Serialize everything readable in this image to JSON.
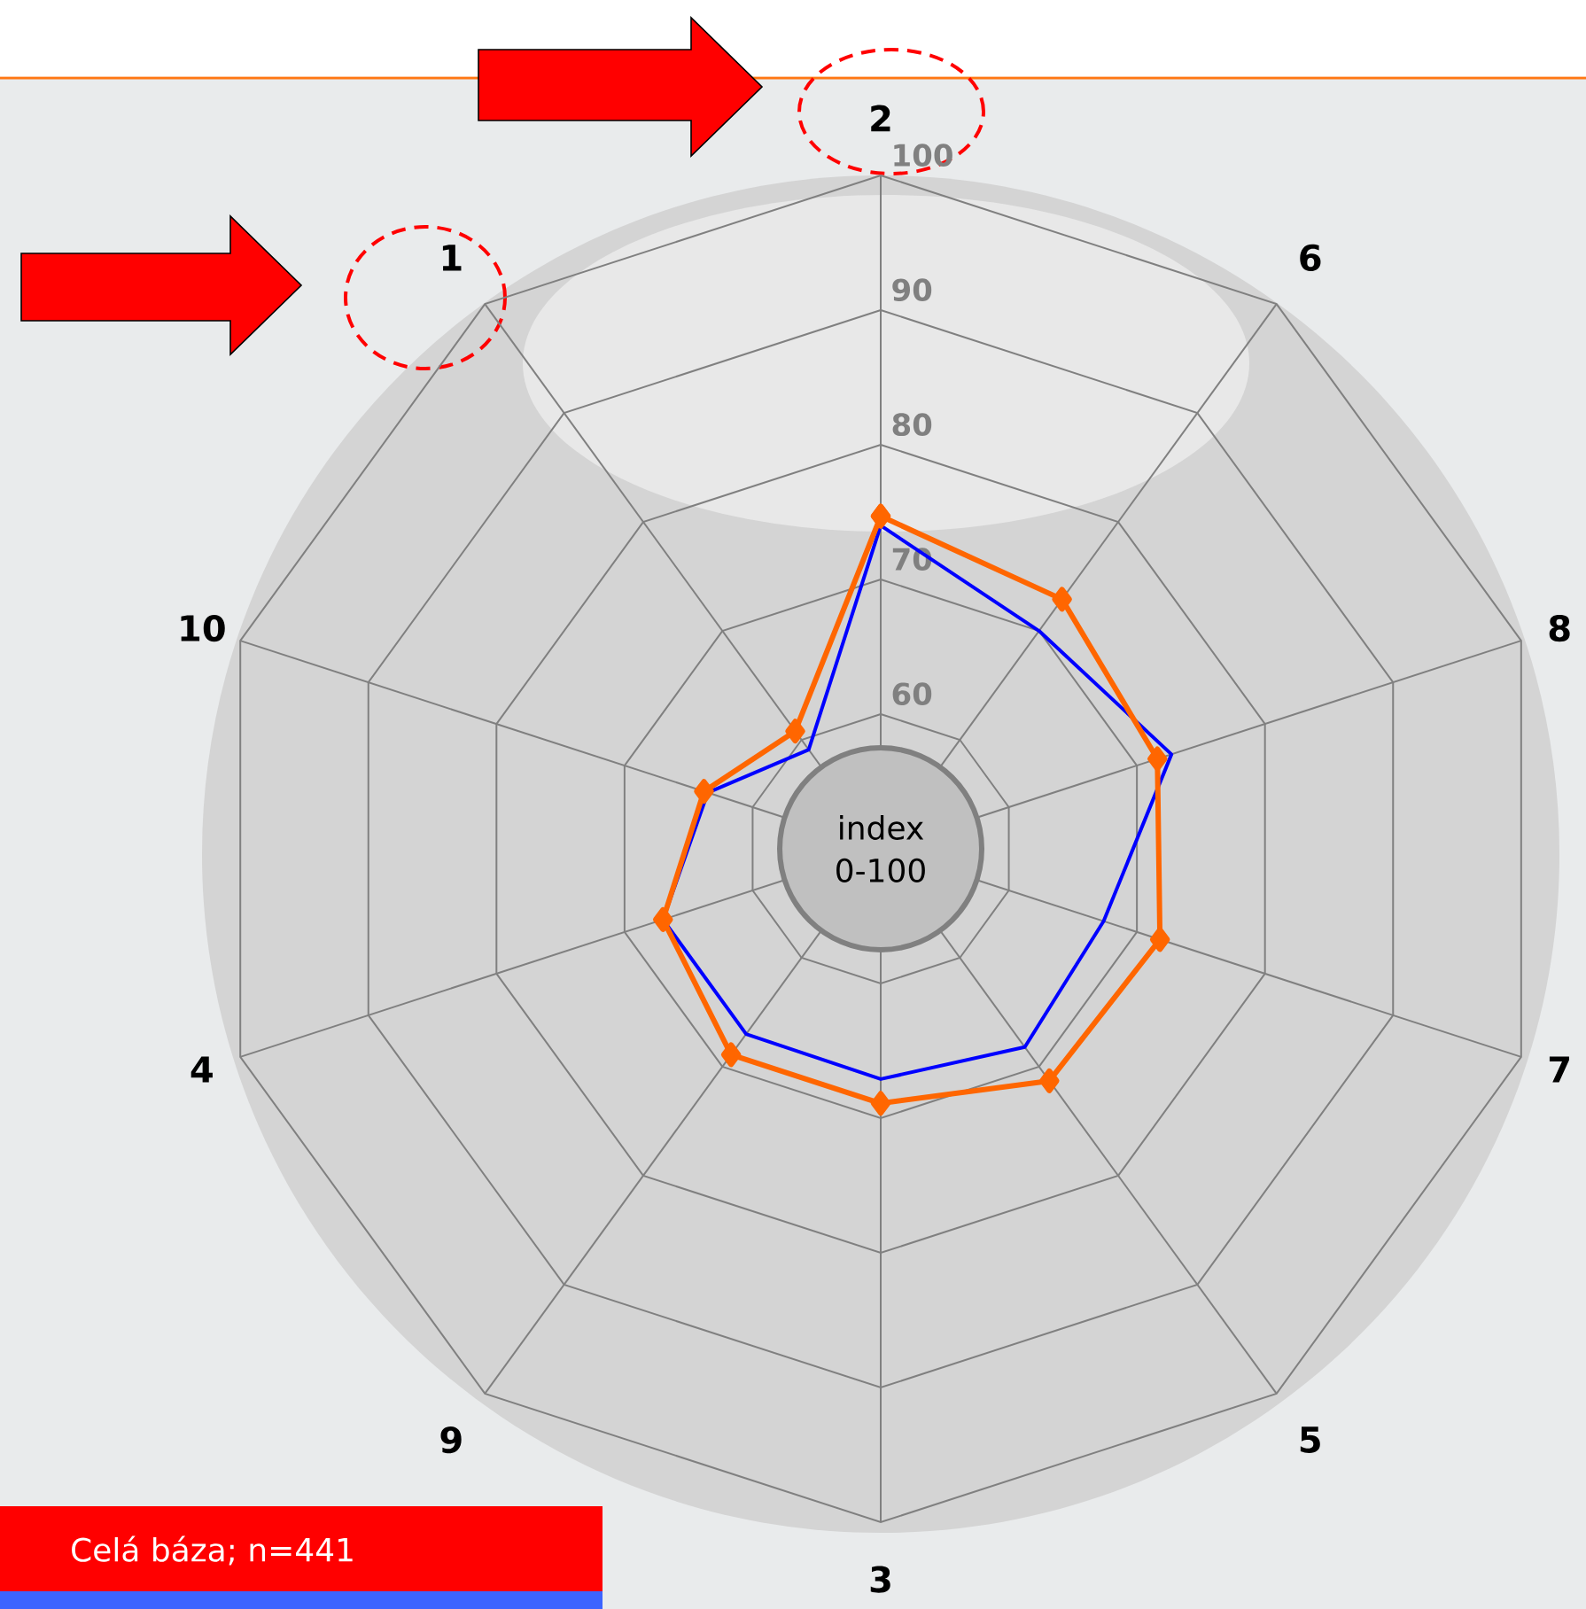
{
  "chart_data": {
    "type": "radar",
    "categories": [
      "2",
      "6",
      "8",
      "7",
      "5",
      "3",
      "9",
      "4",
      "10",
      "1"
    ],
    "series": [
      {
        "color": "#0000ff",
        "marker": "none",
        "values": [
          74.0,
          70.0,
          72.7,
          67.4,
          68.2,
          67.1,
          67.0,
          67.0,
          63.5,
          59.1
        ]
      },
      {
        "color": "#ff6600",
        "marker": "diamond",
        "values": [
          74.7,
          72.9,
          71.6,
          71.8,
          71.3,
          68.9,
          68.9,
          67.0,
          63.8,
          60.8
        ]
      }
    ],
    "ylim": [
      50,
      100
    ],
    "yticks": [
      60,
      70,
      80,
      90,
      100
    ],
    "grid": true,
    "annotations": [
      "index 0-100",
      "Celá báza; n=441"
    ]
  }
}
